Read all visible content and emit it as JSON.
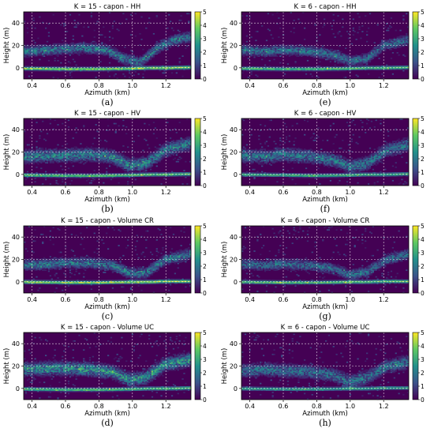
{
  "colormap": [
    "#440154",
    "#3b528b",
    "#21918c",
    "#5ec962",
    "#fde725"
  ],
  "background_color": "#440154",
  "panels": [
    {
      "type": "heatmap",
      "title": "K = 15 - capon - HH",
      "caption": "(a)",
      "xlabel": "Azimuth (km)",
      "ylabel": "Height (m)",
      "xlim": [
        0.35,
        1.35
      ],
      "ylim": [
        -10,
        50
      ],
      "xticks": [
        "0.4",
        "0.6",
        "0.8",
        "1.0",
        "1.2"
      ],
      "xtick_values": [
        0.4,
        0.6,
        0.8,
        1.0,
        1.2
      ],
      "yticks": [
        "0",
        "20",
        "40"
      ],
      "ytick_values": [
        0,
        20,
        40
      ],
      "colorbar_ticks": [
        "0",
        "1",
        "2",
        "3",
        "4",
        "5"
      ],
      "colorbar_range": [
        0,
        5
      ],
      "grid": true,
      "ground_profile": [
        [
          0.35,
          -0.5
        ],
        [
          0.6,
          -1
        ],
        [
          0.8,
          -1
        ],
        [
          1.0,
          -0.5
        ],
        [
          1.1,
          0
        ],
        [
          1.2,
          0
        ],
        [
          1.35,
          0.5
        ]
      ],
      "ground_intensity": 4.5,
      "canopy_profile": [
        [
          0.35,
          15
        ],
        [
          0.5,
          16
        ],
        [
          0.6,
          17
        ],
        [
          0.7,
          18
        ],
        [
          0.85,
          16
        ],
        [
          0.95,
          8
        ],
        [
          1.05,
          5
        ],
        [
          1.15,
          18
        ],
        [
          1.25,
          25
        ],
        [
          1.35,
          28
        ]
      ],
      "canopy_intensity": 2.5,
      "canopy_spread": 4
    },
    {
      "type": "heatmap",
      "title": "K = 6 - capon - HH",
      "caption": "(e)",
      "xlabel": "Azimuth (km)",
      "ylabel": "Height (m)",
      "xlim": [
        0.35,
        1.35
      ],
      "ylim": [
        -10,
        50
      ],
      "xticks": [
        "0.4",
        "0.6",
        "0.8",
        "1.0",
        "1.2"
      ],
      "xtick_values": [
        0.4,
        0.6,
        0.8,
        1.0,
        1.2
      ],
      "yticks": [
        "0",
        "20",
        "40"
      ],
      "ytick_values": [
        0,
        20,
        40
      ],
      "colorbar_ticks": [
        "0",
        "1",
        "2",
        "3",
        "4",
        "5"
      ],
      "colorbar_range": [
        0,
        5
      ],
      "grid": true,
      "ground_profile": [
        [
          0.35,
          -0.5
        ],
        [
          0.6,
          -1
        ],
        [
          0.8,
          -1
        ],
        [
          1.0,
          -0.5
        ],
        [
          1.1,
          0
        ],
        [
          1.2,
          0
        ],
        [
          1.35,
          0.5
        ]
      ],
      "ground_intensity": 3.8,
      "canopy_profile": [
        [
          0.35,
          16
        ],
        [
          0.5,
          15
        ],
        [
          0.6,
          16
        ],
        [
          0.75,
          15
        ],
        [
          0.9,
          12
        ],
        [
          1.0,
          6
        ],
        [
          1.1,
          8
        ],
        [
          1.2,
          20
        ],
        [
          1.35,
          25
        ]
      ],
      "canopy_intensity": 2.2,
      "canopy_spread": 4
    },
    {
      "type": "heatmap",
      "title": "K = 15 - capon - HV",
      "caption": "(b)",
      "xlabel": "Azimuth (km)",
      "ylabel": "Height (m)",
      "xlim": [
        0.35,
        1.35
      ],
      "ylim": [
        -10,
        50
      ],
      "xticks": [
        "0.4",
        "0.6",
        "0.8",
        "1.0",
        "1.2"
      ],
      "xtick_values": [
        0.4,
        0.6,
        0.8,
        1.0,
        1.2
      ],
      "yticks": [
        "0",
        "20",
        "40"
      ],
      "ytick_values": [
        0,
        20,
        40
      ],
      "colorbar_ticks": [
        "0",
        "1",
        "2",
        "3",
        "4",
        "5"
      ],
      "colorbar_range": [
        0,
        5
      ],
      "grid": true,
      "ground_profile": [
        [
          0.35,
          -0.5
        ],
        [
          0.6,
          -1
        ],
        [
          0.8,
          -1
        ],
        [
          1.0,
          -0.5
        ],
        [
          1.1,
          0
        ],
        [
          1.2,
          0
        ],
        [
          1.35,
          0.5
        ]
      ],
      "ground_intensity": 4.0,
      "canopy_profile": [
        [
          0.35,
          16
        ],
        [
          0.5,
          17
        ],
        [
          0.6,
          17
        ],
        [
          0.75,
          18
        ],
        [
          0.88,
          16
        ],
        [
          0.98,
          8
        ],
        [
          1.08,
          10
        ],
        [
          1.2,
          22
        ],
        [
          1.35,
          28
        ]
      ],
      "canopy_intensity": 2.6,
      "canopy_spread": 5
    },
    {
      "type": "heatmap",
      "title": "K = 6 - capon - HV",
      "caption": "(f)",
      "xlabel": "Azimuth (km)",
      "ylabel": "Height (m)",
      "xlim": [
        0.35,
        1.35
      ],
      "ylim": [
        -10,
        50
      ],
      "xticks": [
        "0.4",
        "0.6",
        "0.8",
        "1.0",
        "1.2"
      ],
      "xtick_values": [
        0.4,
        0.6,
        0.8,
        1.0,
        1.2
      ],
      "yticks": [
        "0",
        "20",
        "40"
      ],
      "ytick_values": [
        0,
        20,
        40
      ],
      "colorbar_ticks": [
        "0",
        "1",
        "2",
        "3",
        "4",
        "5"
      ],
      "colorbar_range": [
        0,
        5
      ],
      "grid": true,
      "ground_profile": [
        [
          0.35,
          0
        ],
        [
          0.6,
          -0.5
        ],
        [
          0.8,
          -1
        ],
        [
          1.0,
          -0.5
        ],
        [
          1.1,
          0
        ],
        [
          1.2,
          0
        ],
        [
          1.35,
          0.5
        ]
      ],
      "ground_intensity": 3.5,
      "canopy_profile": [
        [
          0.35,
          17
        ],
        [
          0.5,
          16
        ],
        [
          0.6,
          18
        ],
        [
          0.75,
          16
        ],
        [
          0.9,
          13
        ],
        [
          1.0,
          7
        ],
        [
          1.1,
          10
        ],
        [
          1.22,
          22
        ],
        [
          1.35,
          27
        ]
      ],
      "canopy_intensity": 2.4,
      "canopy_spread": 5
    },
    {
      "type": "heatmap",
      "title": "K = 15 - capon - Volume CR",
      "caption": "(c)",
      "xlabel": "Azimuth (km)",
      "ylabel": "Height (m)",
      "xlim": [
        0.35,
        1.35
      ],
      "ylim": [
        -10,
        50
      ],
      "xticks": [
        "0.4",
        "0.6",
        "0.8",
        "1.0",
        "1.2"
      ],
      "xtick_values": [
        0.4,
        0.6,
        0.8,
        1.0,
        1.2
      ],
      "yticks": [
        "0",
        "20",
        "40"
      ],
      "ytick_values": [
        0,
        20,
        40
      ],
      "colorbar_ticks": [
        "0",
        "1",
        "2",
        "3",
        "4",
        "5"
      ],
      "colorbar_range": [
        0,
        5
      ],
      "grid": true,
      "ground_profile": [
        [
          0.35,
          0
        ],
        [
          0.6,
          -0.5
        ],
        [
          0.8,
          -0.5
        ],
        [
          1.0,
          0
        ],
        [
          1.1,
          0
        ],
        [
          1.2,
          0.5
        ],
        [
          1.35,
          0.5
        ]
      ],
      "ground_intensity": 4.6,
      "canopy_profile": [
        [
          0.35,
          15
        ],
        [
          0.5,
          16
        ],
        [
          0.6,
          17
        ],
        [
          0.75,
          17
        ],
        [
          0.88,
          15
        ],
        [
          0.98,
          8
        ],
        [
          1.08,
          8
        ],
        [
          1.2,
          20
        ],
        [
          1.35,
          25
        ]
      ],
      "canopy_intensity": 2.5,
      "canopy_spread": 4
    },
    {
      "type": "heatmap",
      "title": "K = 6 - capon - Volume CR",
      "caption": "(g)",
      "xlabel": "Azimuth (km)",
      "ylabel": "Height (m)",
      "xlim": [
        0.35,
        1.35
      ],
      "ylim": [
        -10,
        50
      ],
      "xticks": [
        "0.4",
        "0.6",
        "0.8",
        "1.0",
        "1.2"
      ],
      "xtick_values": [
        0.4,
        0.6,
        0.8,
        1.0,
        1.2
      ],
      "yticks": [
        "0",
        "20",
        "40"
      ],
      "ytick_values": [
        0,
        20,
        40
      ],
      "colorbar_ticks": [
        "0",
        "1",
        "2",
        "3",
        "4",
        "5"
      ],
      "colorbar_range": [
        0,
        5
      ],
      "grid": true,
      "ground_profile": [
        [
          0.35,
          0
        ],
        [
          0.6,
          -0.5
        ],
        [
          0.8,
          -0.5
        ],
        [
          1.0,
          0
        ],
        [
          1.1,
          0
        ],
        [
          1.2,
          0.5
        ],
        [
          1.35,
          0.5
        ]
      ],
      "ground_intensity": 4.0,
      "canopy_profile": [
        [
          0.35,
          16
        ],
        [
          0.5,
          15
        ],
        [
          0.6,
          16
        ],
        [
          0.75,
          15
        ],
        [
          0.9,
          12
        ],
        [
          1.0,
          6
        ],
        [
          1.1,
          9
        ],
        [
          1.22,
          20
        ],
        [
          1.35,
          25
        ]
      ],
      "canopy_intensity": 2.2,
      "canopy_spread": 4
    },
    {
      "type": "heatmap",
      "title": "K = 15 - capon - Volume UC",
      "caption": "(d)",
      "xlabel": "Azimuth (km)",
      "ylabel": "Height (m)",
      "xlim": [
        0.35,
        1.35
      ],
      "ylim": [
        -10,
        50
      ],
      "xticks": [
        "0.4",
        "0.6",
        "0.8",
        "1.0",
        "1.2"
      ],
      "xtick_values": [
        0.4,
        0.6,
        0.8,
        1.0,
        1.2
      ],
      "yticks": [
        "0",
        "20",
        "40"
      ],
      "ytick_values": [
        0,
        20,
        40
      ],
      "colorbar_ticks": [
        "0",
        "1",
        "2",
        "3",
        "4",
        "5"
      ],
      "colorbar_range": [
        0,
        5
      ],
      "grid": true,
      "ground_profile": [
        [
          0.35,
          -0.5
        ],
        [
          0.6,
          -1
        ],
        [
          0.8,
          -1
        ],
        [
          1.0,
          -0.5
        ],
        [
          1.1,
          0
        ],
        [
          1.2,
          0
        ],
        [
          1.35,
          0.5
        ]
      ],
      "ground_intensity": 3.8,
      "canopy_profile": [
        [
          0.35,
          17
        ],
        [
          0.5,
          18
        ],
        [
          0.6,
          18
        ],
        [
          0.75,
          17
        ],
        [
          0.88,
          15
        ],
        [
          0.98,
          8
        ],
        [
          1.08,
          10
        ],
        [
          1.2,
          22
        ],
        [
          1.35,
          26
        ]
      ],
      "canopy_intensity": 3.0,
      "canopy_spread": 5
    },
    {
      "type": "heatmap",
      "title": "K = 6 - capon - Volume UC",
      "caption": "(h)",
      "xlabel": "Azimuth (km)",
      "ylabel": "Height (m)",
      "xlim": [
        0.35,
        1.35
      ],
      "ylim": [
        -10,
        50
      ],
      "xticks": [
        "0.4",
        "0.6",
        "0.8",
        "1.0",
        "1.2"
      ],
      "xtick_values": [
        0.4,
        0.6,
        0.8,
        1.0,
        1.2
      ],
      "yticks": [
        "0",
        "20",
        "40"
      ],
      "ytick_values": [
        0,
        20,
        40
      ],
      "colorbar_ticks": [
        "0",
        "1",
        "2",
        "3",
        "4",
        "5"
      ],
      "colorbar_range": [
        0,
        5
      ],
      "grid": true,
      "ground_profile": [
        [
          0.35,
          0
        ],
        [
          0.6,
          -0.5
        ],
        [
          0.8,
          -0.5
        ],
        [
          1.0,
          0
        ],
        [
          1.1,
          0
        ],
        [
          1.2,
          0.5
        ],
        [
          1.35,
          0.5
        ]
      ],
      "ground_intensity": 3.2,
      "canopy_profile": [
        [
          0.35,
          16
        ],
        [
          0.5,
          17
        ],
        [
          0.6,
          16
        ],
        [
          0.75,
          15
        ],
        [
          0.9,
          12
        ],
        [
          1.0,
          6
        ],
        [
          1.1,
          10
        ],
        [
          1.22,
          20
        ],
        [
          1.35,
          24
        ]
      ],
      "canopy_intensity": 2.3,
      "canopy_spread": 5
    }
  ]
}
